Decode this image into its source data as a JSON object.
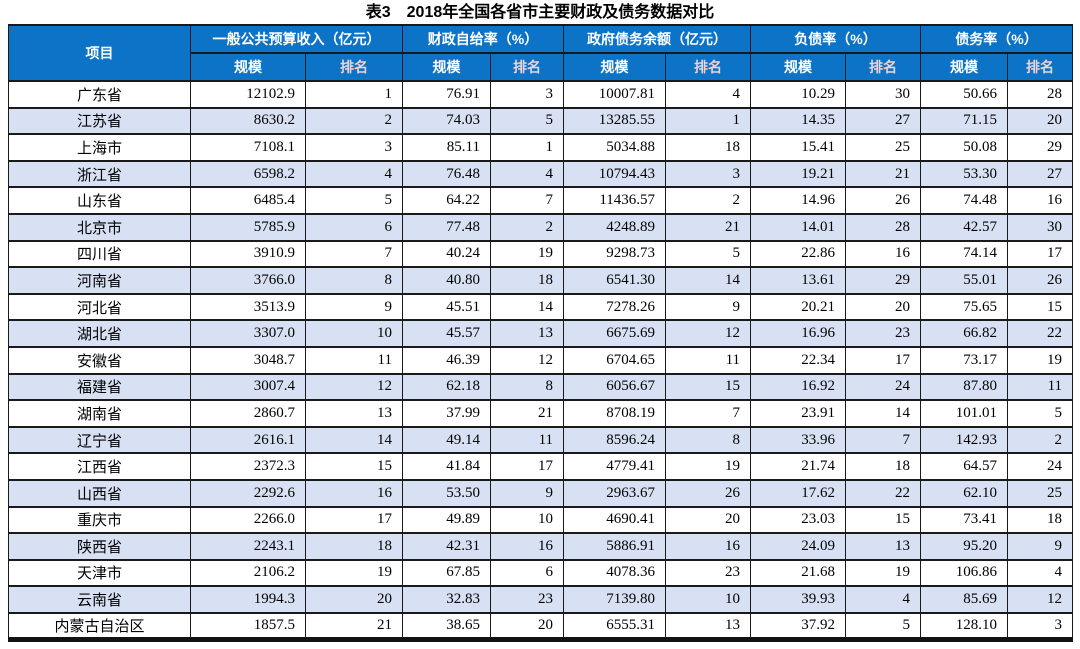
{
  "title": "表3　2018年全国各省市主要财政及债务数据对比",
  "colors": {
    "header_bg": "#0d73c7",
    "header_text": "#ffffff",
    "rank_header_text": "#efd2d2",
    "band_row_bg": "#d8e1f3",
    "border": "#1a1a1a"
  },
  "table": {
    "corner_header": "项目",
    "groups": [
      {
        "label": "一般公共预算收入（亿元）"
      },
      {
        "label": "财政自给率（%）"
      },
      {
        "label": "政府债务余额（亿元）"
      },
      {
        "label": "负债率（%）"
      },
      {
        "label": "债务率（%）"
      }
    ],
    "sub_headers": {
      "scale": "规模",
      "rank": "排名"
    },
    "rows": [
      {
        "name": "广东省",
        "values": [
          "12102.9",
          "1",
          "76.91",
          "3",
          "10007.81",
          "4",
          "10.29",
          "30",
          "50.66",
          "28"
        ]
      },
      {
        "name": "江苏省",
        "values": [
          "8630.2",
          "2",
          "74.03",
          "5",
          "13285.55",
          "1",
          "14.35",
          "27",
          "71.15",
          "20"
        ]
      },
      {
        "name": "上海市",
        "values": [
          "7108.1",
          "3",
          "85.11",
          "1",
          "5034.88",
          "18",
          "15.41",
          "25",
          "50.08",
          "29"
        ]
      },
      {
        "name": "浙江省",
        "values": [
          "6598.2",
          "4",
          "76.48",
          "4",
          "10794.43",
          "3",
          "19.21",
          "21",
          "53.30",
          "27"
        ]
      },
      {
        "name": "山东省",
        "values": [
          "6485.4",
          "5",
          "64.22",
          "7",
          "11436.57",
          "2",
          "14.96",
          "26",
          "74.48",
          "16"
        ]
      },
      {
        "name": "北京市",
        "values": [
          "5785.9",
          "6",
          "77.48",
          "2",
          "4248.89",
          "21",
          "14.01",
          "28",
          "42.57",
          "30"
        ]
      },
      {
        "name": "四川省",
        "values": [
          "3910.9",
          "7",
          "40.24",
          "19",
          "9298.73",
          "5",
          "22.86",
          "16",
          "74.14",
          "17"
        ]
      },
      {
        "name": "河南省",
        "values": [
          "3766.0",
          "8",
          "40.80",
          "18",
          "6541.30",
          "14",
          "13.61",
          "29",
          "55.01",
          "26"
        ]
      },
      {
        "name": "河北省",
        "values": [
          "3513.9",
          "9",
          "45.51",
          "14",
          "7278.26",
          "9",
          "20.21",
          "20",
          "75.65",
          "15"
        ]
      },
      {
        "name": "湖北省",
        "values": [
          "3307.0",
          "10",
          "45.57",
          "13",
          "6675.69",
          "12",
          "16.96",
          "23",
          "66.82",
          "22"
        ]
      },
      {
        "name": "安徽省",
        "values": [
          "3048.7",
          "11",
          "46.39",
          "12",
          "6704.65",
          "11",
          "22.34",
          "17",
          "73.17",
          "19"
        ]
      },
      {
        "name": "福建省",
        "values": [
          "3007.4",
          "12",
          "62.18",
          "8",
          "6056.67",
          "15",
          "16.92",
          "24",
          "87.80",
          "11"
        ]
      },
      {
        "name": "湖南省",
        "values": [
          "2860.7",
          "13",
          "37.99",
          "21",
          "8708.19",
          "7",
          "23.91",
          "14",
          "101.01",
          "5"
        ]
      },
      {
        "name": "辽宁省",
        "values": [
          "2616.1",
          "14",
          "49.14",
          "11",
          "8596.24",
          "8",
          "33.96",
          "7",
          "142.93",
          "2"
        ]
      },
      {
        "name": "江西省",
        "values": [
          "2372.3",
          "15",
          "41.84",
          "17",
          "4779.41",
          "19",
          "21.74",
          "18",
          "64.57",
          "24"
        ]
      },
      {
        "name": "山西省",
        "values": [
          "2292.6",
          "16",
          "53.50",
          "9",
          "2963.67",
          "26",
          "17.62",
          "22",
          "62.10",
          "25"
        ]
      },
      {
        "name": "重庆市",
        "values": [
          "2266.0",
          "17",
          "49.89",
          "10",
          "4690.41",
          "20",
          "23.03",
          "15",
          "73.41",
          "18"
        ]
      },
      {
        "name": "陕西省",
        "values": [
          "2243.1",
          "18",
          "42.31",
          "16",
          "5886.91",
          "16",
          "24.09",
          "13",
          "95.20",
          "9"
        ]
      },
      {
        "name": "天津市",
        "values": [
          "2106.2",
          "19",
          "67.85",
          "6",
          "4078.36",
          "23",
          "21.68",
          "19",
          "106.86",
          "4"
        ]
      },
      {
        "name": "云南省",
        "values": [
          "1994.3",
          "20",
          "32.83",
          "23",
          "7139.80",
          "10",
          "39.93",
          "4",
          "85.69",
          "12"
        ]
      },
      {
        "name": "内蒙古自治区",
        "values": [
          "1857.5",
          "21",
          "38.65",
          "20",
          "6555.31",
          "13",
          "37.92",
          "5",
          "128.10",
          "3"
        ]
      }
    ]
  }
}
